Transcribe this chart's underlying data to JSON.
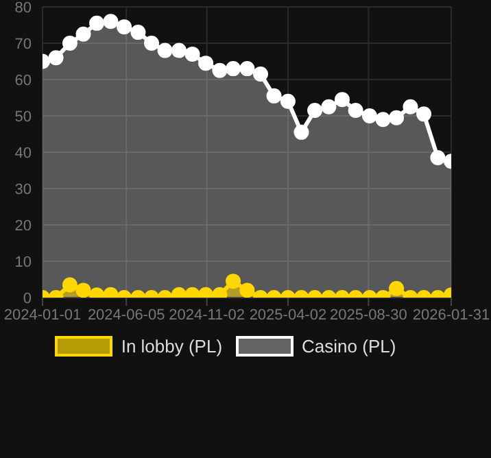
{
  "chart_data": {
    "type": "area",
    "x": [
      "2024-01-01",
      "2024-01-26",
      "2024-02-21",
      "2024-03-17",
      "2024-04-11",
      "2024-05-07",
      "2024-06-01",
      "2024-06-27",
      "2024-07-22",
      "2024-08-16",
      "2024-09-11",
      "2024-10-06",
      "2024-10-31",
      "2024-11-26",
      "2024-12-21",
      "2025-01-16",
      "2025-02-10",
      "2025-03-07",
      "2025-04-02",
      "2025-04-27",
      "2025-05-22",
      "2025-06-17",
      "2025-07-12",
      "2025-08-06",
      "2025-09-01",
      "2025-09-26",
      "2025-10-21",
      "2025-11-16",
      "2025-12-11",
      "2026-01-06",
      "2026-01-31"
    ],
    "series": [
      {
        "name": "In lobby (PL)",
        "color": "#ffd700",
        "values": [
          0,
          0,
          3.5,
          2,
          0.7,
          0.8,
          0,
          0,
          0,
          0,
          0.8,
          0.8,
          0.8,
          0.8,
          4.5,
          2,
          0,
          0,
          0,
          0,
          0,
          0,
          0,
          0,
          0,
          0,
          2.5,
          0,
          0,
          0,
          0.7
        ]
      },
      {
        "name": "Casino (PL)",
        "color": "#ffffff",
        "values": [
          65,
          66,
          70,
          72.5,
          75.5,
          76,
          74.5,
          73,
          70,
          68,
          68,
          67,
          64.5,
          62.5,
          63,
          63,
          61.5,
          55.5,
          54,
          45.5,
          51.5,
          52.5,
          54.5,
          51.5,
          50,
          49,
          49.5,
          52.5,
          50.5,
          38.5,
          37.5
        ]
      }
    ],
    "xlim": [
      "2024-01-01",
      "2026-01-31"
    ],
    "xticks": [
      "2024-01-01",
      "2024-06-05",
      "2024-11-02",
      "2025-04-02",
      "2025-08-30",
      "2026-01-31"
    ],
    "ylim": [
      0,
      80
    ],
    "yticks": [
      0,
      10,
      20,
      30,
      40,
      50,
      60,
      70,
      80
    ],
    "grid": true,
    "legend": "bottom",
    "marker": "circle",
    "line_style": "solid"
  }
}
